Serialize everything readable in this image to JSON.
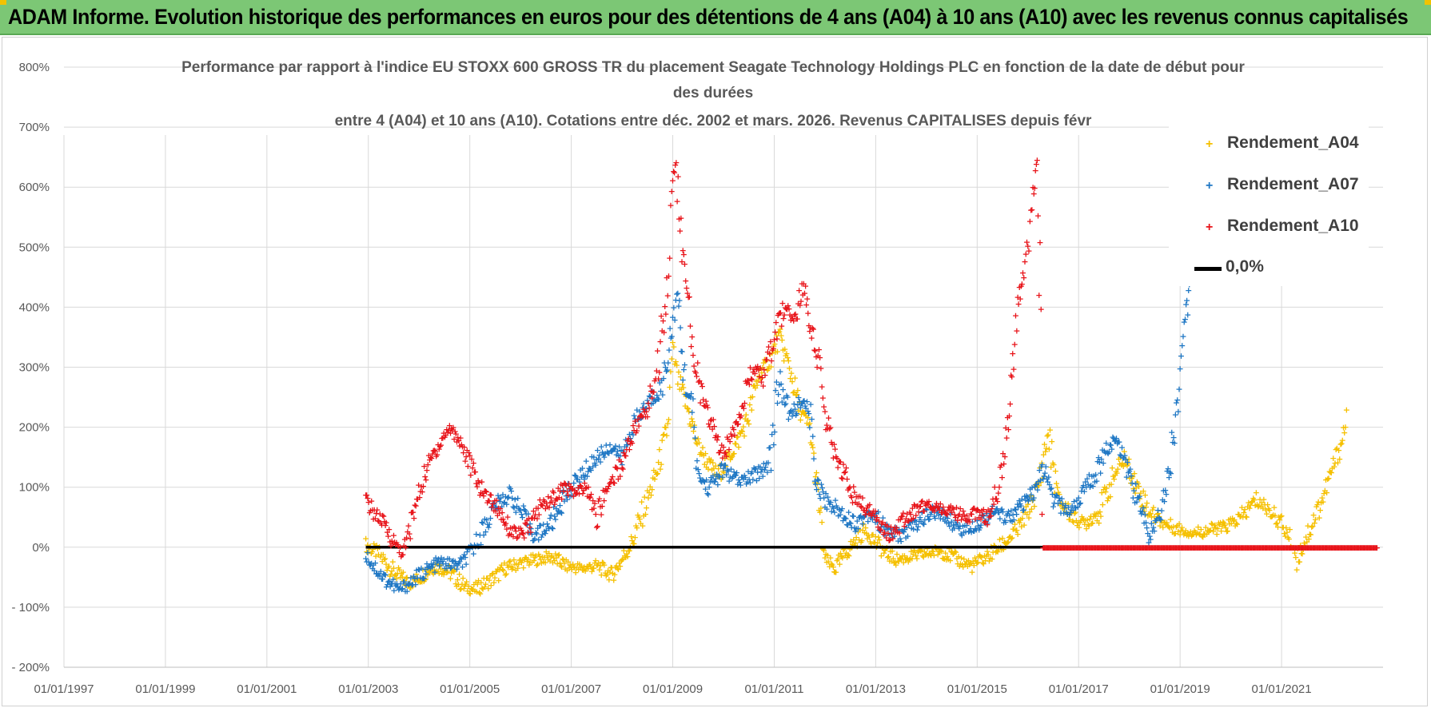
{
  "banner": {
    "title": "ADAM Informe. Evolution historique des performances en euros pour des détentions de 4 ans (A04) à 10 ans (A10) avec les revenus connus capitalisés",
    "color": "#7cc775"
  },
  "chart_data": {
    "type": "scatter",
    "title_lines": [
      "Performance par rapport à l'indice EU STOXX 600 GROSS TR  du placement Seagate Technology Holdings PLC en fonction de la date de début pour",
      "des durées",
      "entre 4 (A04) et 10 ans (A10). Cotations entre déc. 2002 et mars. 2026. Revenus CAPITALISES depuis févr"
    ],
    "xlabel": "",
    "ylabel": "",
    "x_tick_labels": [
      "01/01/1997",
      "01/01/1999",
      "01/01/2001",
      "01/01/2003",
      "01/01/2005",
      "01/01/2007",
      "01/01/2009",
      "01/01/2011",
      "01/01/2013",
      "01/01/2015",
      "01/01/2017",
      "01/01/2019",
      "01/01/2021"
    ],
    "x_range_years": [
      1997,
      2023
    ],
    "y_tick_labels": [
      "800%",
      "700%",
      "600%",
      "500%",
      "400%",
      "300%",
      "200%",
      "100%",
      "0%",
      "- 100%",
      "- 200%"
    ],
    "ylim": [
      -200,
      800
    ],
    "legend_position": "top-right",
    "grid": true,
    "series": [
      {
        "name": "Rendement_A04",
        "color": "#f5c000",
        "marker": "+",
        "points": [
          [
            2002.95,
            5
          ],
          [
            2003.2,
            -10
          ],
          [
            2003.5,
            -40
          ],
          [
            2003.8,
            -60
          ],
          [
            2004.0,
            -50
          ],
          [
            2004.3,
            -30
          ],
          [
            2004.6,
            -40
          ],
          [
            2004.9,
            -65
          ],
          [
            2005.1,
            -70
          ],
          [
            2005.4,
            -55
          ],
          [
            2005.7,
            -35
          ],
          [
            2006.0,
            -25
          ],
          [
            2006.3,
            -20
          ],
          [
            2006.6,
            -15
          ],
          [
            2006.9,
            -30
          ],
          [
            2007.2,
            -35
          ],
          [
            2007.5,
            -30
          ],
          [
            2007.8,
            -45
          ],
          [
            2008.0,
            -20
          ],
          [
            2008.2,
            10
          ],
          [
            2008.5,
            80
          ],
          [
            2008.7,
            130
          ],
          [
            2008.9,
            200
          ],
          [
            2009.0,
            330
          ],
          [
            2009.1,
            280
          ],
          [
            2009.3,
            230
          ],
          [
            2009.5,
            170
          ],
          [
            2009.7,
            140
          ],
          [
            2009.9,
            120
          ],
          [
            2010.1,
            150
          ],
          [
            2010.3,
            180
          ],
          [
            2010.5,
            220
          ],
          [
            2010.7,
            290
          ],
          [
            2010.9,
            310
          ],
          [
            2011.1,
            350
          ],
          [
            2011.3,
            300
          ],
          [
            2011.5,
            230
          ],
          [
            2011.7,
            200
          ],
          [
            2011.8,
            130
          ],
          [
            2011.9,
            60
          ],
          [
            2012.0,
            -20
          ],
          [
            2012.2,
            -35
          ],
          [
            2012.4,
            -10
          ],
          [
            2012.6,
            10
          ],
          [
            2012.8,
            30
          ],
          [
            2013.0,
            10
          ],
          [
            2013.2,
            -10
          ],
          [
            2013.4,
            -20
          ],
          [
            2013.7,
            -15
          ],
          [
            2014.0,
            -10
          ],
          [
            2014.3,
            -5
          ],
          [
            2014.6,
            -20
          ],
          [
            2014.9,
            -30
          ],
          [
            2015.2,
            -15
          ],
          [
            2015.5,
            5
          ],
          [
            2015.8,
            30
          ],
          [
            2016.0,
            60
          ],
          [
            2016.2,
            100
          ],
          [
            2016.4,
            190
          ],
          [
            2016.6,
            80
          ],
          [
            2016.9,
            50
          ],
          [
            2017.1,
            40
          ],
          [
            2017.4,
            60
          ],
          [
            2017.7,
            120
          ],
          [
            2017.9,
            150
          ],
          [
            2018.1,
            110
          ],
          [
            2018.4,
            60
          ],
          [
            2018.7,
            40
          ],
          [
            2019.0,
            30
          ],
          [
            2019.3,
            25
          ],
          [
            2019.6,
            30
          ],
          [
            2019.9,
            35
          ],
          [
            2020.2,
            50
          ],
          [
            2020.5,
            80
          ],
          [
            2020.8,
            60
          ],
          [
            2021.0,
            40
          ],
          [
            2021.2,
            10
          ],
          [
            2021.3,
            -20
          ],
          [
            2021.5,
            20
          ],
          [
            2021.8,
            80
          ],
          [
            2022.0,
            130
          ],
          [
            2022.2,
            180
          ],
          [
            2022.3,
            230
          ]
        ]
      },
      {
        "name": "Rendement_A07",
        "color": "#1f77c4",
        "marker": "+",
        "points": [
          [
            2002.95,
            -10
          ],
          [
            2003.1,
            -30
          ],
          [
            2003.3,
            -50
          ],
          [
            2003.6,
            -70
          ],
          [
            2003.8,
            -60
          ],
          [
            2004.1,
            -40
          ],
          [
            2004.4,
            -25
          ],
          [
            2004.8,
            -30
          ],
          [
            2005.0,
            -10
          ],
          [
            2005.2,
            20
          ],
          [
            2005.5,
            70
          ],
          [
            2005.8,
            90
          ],
          [
            2006.0,
            60
          ],
          [
            2006.3,
            20
          ],
          [
            2006.6,
            40
          ],
          [
            2006.9,
            90
          ],
          [
            2007.2,
            120
          ],
          [
            2007.5,
            150
          ],
          [
            2007.8,
            170
          ],
          [
            2008.0,
            150
          ],
          [
            2008.2,
            200
          ],
          [
            2008.5,
            240
          ],
          [
            2008.8,
            270
          ],
          [
            2009.0,
            380
          ],
          [
            2009.1,
            420
          ],
          [
            2009.2,
            300
          ],
          [
            2009.4,
            220
          ],
          [
            2009.5,
            120
          ],
          [
            2009.7,
            100
          ],
          [
            2010.0,
            130
          ],
          [
            2010.3,
            110
          ],
          [
            2010.6,
            120
          ],
          [
            2010.9,
            140
          ],
          [
            2011.1,
            280
          ],
          [
            2011.3,
            220
          ],
          [
            2011.5,
            240
          ],
          [
            2011.7,
            230
          ],
          [
            2011.8,
            120
          ],
          [
            2012.0,
            80
          ],
          [
            2012.3,
            60
          ],
          [
            2012.6,
            40
          ],
          [
            2012.9,
            60
          ],
          [
            2013.2,
            30
          ],
          [
            2013.5,
            20
          ],
          [
            2013.8,
            40
          ],
          [
            2014.1,
            60
          ],
          [
            2014.4,
            50
          ],
          [
            2014.7,
            30
          ],
          [
            2015.0,
            40
          ],
          [
            2015.3,
            60
          ],
          [
            2015.6,
            50
          ],
          [
            2015.9,
            70
          ],
          [
            2016.1,
            90
          ],
          [
            2016.3,
            130
          ],
          [
            2016.5,
            80
          ],
          [
            2016.8,
            60
          ],
          [
            2017.0,
            80
          ],
          [
            2017.3,
            120
          ],
          [
            2017.6,
            170
          ],
          [
            2017.8,
            180
          ],
          [
            2018.0,
            120
          ],
          [
            2018.2,
            70
          ],
          [
            2018.4,
            20
          ],
          [
            2018.6,
            60
          ],
          [
            2018.8,
            140
          ],
          [
            2019.0,
            280
          ],
          [
            2019.1,
            380
          ],
          [
            2019.2,
            430
          ]
        ]
      },
      {
        "name": "Rendement_A10",
        "color": "#e8141a",
        "marker": "+",
        "points": [
          [
            2002.95,
            80
          ],
          [
            2003.1,
            60
          ],
          [
            2003.3,
            40
          ],
          [
            2003.5,
            10
          ],
          [
            2003.7,
            -10
          ],
          [
            2003.9,
            60
          ],
          [
            2004.1,
            120
          ],
          [
            2004.3,
            160
          ],
          [
            2004.6,
            200
          ],
          [
            2004.8,
            180
          ],
          [
            2005.0,
            140
          ],
          [
            2005.2,
            100
          ],
          [
            2005.4,
            80
          ],
          [
            2005.6,
            60
          ],
          [
            2005.8,
            30
          ],
          [
            2006.0,
            20
          ],
          [
            2006.2,
            40
          ],
          [
            2006.4,
            70
          ],
          [
            2006.6,
            80
          ],
          [
            2006.9,
            100
          ],
          [
            2007.1,
            90
          ],
          [
            2007.3,
            100
          ],
          [
            2007.5,
            50
          ],
          [
            2007.7,
            100
          ],
          [
            2008.0,
            140
          ],
          [
            2008.2,
            190
          ],
          [
            2008.5,
            230
          ],
          [
            2008.7,
            300
          ],
          [
            2008.9,
            450
          ],
          [
            2009.0,
            600
          ],
          [
            2009.05,
            650
          ],
          [
            2009.2,
            480
          ],
          [
            2009.4,
            330
          ],
          [
            2009.6,
            240
          ],
          [
            2009.8,
            200
          ],
          [
            2010.0,
            150
          ],
          [
            2010.2,
            200
          ],
          [
            2010.4,
            250
          ],
          [
            2010.6,
            300
          ],
          [
            2010.8,
            280
          ],
          [
            2011.0,
            350
          ],
          [
            2011.2,
            400
          ],
          [
            2011.4,
            380
          ],
          [
            2011.6,
            440
          ],
          [
            2011.7,
            380
          ],
          [
            2011.9,
            300
          ],
          [
            2012.0,
            220
          ],
          [
            2012.2,
            150
          ],
          [
            2012.4,
            120
          ],
          [
            2012.6,
            80
          ],
          [
            2012.9,
            60
          ],
          [
            2013.1,
            40
          ],
          [
            2013.3,
            20
          ],
          [
            2013.6,
            50
          ],
          [
            2013.9,
            70
          ],
          [
            2014.2,
            70
          ],
          [
            2014.5,
            60
          ],
          [
            2014.8,
            50
          ],
          [
            2015.0,
            60
          ],
          [
            2015.2,
            50
          ],
          [
            2015.4,
            100
          ],
          [
            2015.6,
            200
          ],
          [
            2015.7,
            300
          ],
          [
            2015.8,
            400
          ],
          [
            2015.9,
            450
          ],
          [
            2016.0,
            500
          ],
          [
            2016.1,
            600
          ],
          [
            2016.2,
            650
          ],
          [
            2016.3,
            0
          ],
          [
            2017.0,
            0
          ],
          [
            2018.0,
            0
          ],
          [
            2019.0,
            0
          ],
          [
            2020.0,
            0
          ],
          [
            2021.0,
            0
          ],
          [
            2022.0,
            0
          ],
          [
            2022.9,
            0
          ]
        ]
      },
      {
        "name": "0,0%",
        "color": "#000000",
        "marker": "line",
        "points": [
          [
            2002.95,
            0
          ],
          [
            2016.3,
            0
          ]
        ]
      }
    ]
  }
}
